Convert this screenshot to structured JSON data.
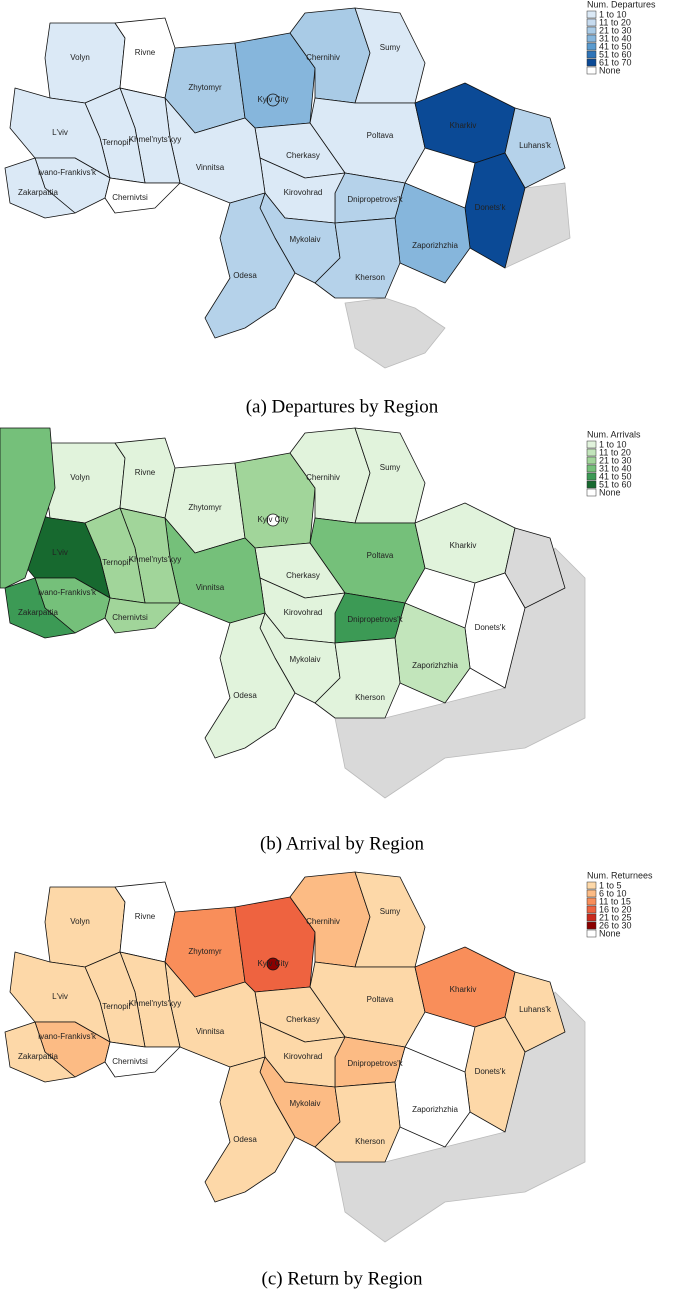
{
  "maps": [
    {
      "caption": "(a) Departures by Region",
      "legend": {
        "title": "Num. Departures",
        "items": [
          {
            "label": "1 to 10",
            "color": "#dbe9f6"
          },
          {
            "label": "11 to 20",
            "color": "#c6dbef"
          },
          {
            "label": "21 to 30",
            "color": "#a9cbe6"
          },
          {
            "label": "31 to 40",
            "color": "#86b6dc"
          },
          {
            "label": "41 to 50",
            "color": "#5a9bcf"
          },
          {
            "label": "51 to 60",
            "color": "#2f74b8"
          },
          {
            "label": "61 to 70",
            "color": "#0b4a96"
          },
          {
            "label": "None",
            "color": "#ffffff"
          }
        ]
      },
      "regions": [
        {
          "name": "Volyn",
          "color": "#dbe9f6"
        },
        {
          "name": "Rivne",
          "color": "#ffffff"
        },
        {
          "name": "Zhytomyr",
          "color": "#a9cbe6"
        },
        {
          "name": null,
          "color": "#86b6dc"
        },
        {
          "name": "Chernihiv",
          "color": "#a9cbe6"
        },
        {
          "name": "Sumy",
          "color": "#dbe9f6"
        },
        {
          "name": "Poltava",
          "color": "#dbe9f6"
        },
        {
          "name": "Kharkiv",
          "color": "#0b4a96"
        },
        {
          "name": "Luhans'k",
          "color": "#b5d2ea"
        },
        {
          "name": "Donets'k",
          "color": "#0b4a96"
        },
        {
          "name": "Zaporizhzhia",
          "color": "#86b6dc"
        },
        {
          "name": "Dnipropetrovs'k",
          "color": "#b5d2ea"
        },
        {
          "name": "Cherkasy",
          "color": "#dbe9f6"
        },
        {
          "name": "Kirovohrad",
          "color": "#dbe9f6"
        },
        {
          "name": "Vinnitsa",
          "color": "#dbe9f6"
        },
        {
          "name": "Khmel'nyts'kyy",
          "color": "#dbe9f6"
        },
        {
          "name": "Ternopil'",
          "color": "#dbe9f6"
        },
        {
          "name": "L'viv",
          "color": "#dbe9f6"
        },
        {
          "name": "Ivano-Frankivs'k",
          "color": "#dbe9f6"
        },
        {
          "name": "Zakarpattia",
          "color": "#dbe9f6"
        },
        {
          "name": "Chernivtsi",
          "color": "#ffffff"
        },
        {
          "name": "Mykolaiv",
          "color": "#b5d2ea"
        },
        {
          "name": "Odesa",
          "color": "#b5d2ea"
        },
        {
          "name": "Kherson",
          "color": "#b5d2ea"
        },
        {
          "name": "Kyiv City",
          "color": "#86b6dc"
        }
      ]
    },
    {
      "caption": "(b) Arrival by Region",
      "legend": {
        "title": "Num. Arrivals",
        "items": [
          {
            "label": "1 to 10",
            "color": "#e1f3dc"
          },
          {
            "label": "11 to 20",
            "color": "#c2e5bb"
          },
          {
            "label": "21 to 30",
            "color": "#a1d59a"
          },
          {
            "label": "31 to 40",
            "color": "#75c07a"
          },
          {
            "label": "41 to 50",
            "color": "#3c9a55"
          },
          {
            "label": "51 to 60",
            "color": "#17692f"
          },
          {
            "label": "None",
            "color": "#ffffff"
          }
        ]
      },
      "regions": [
        {
          "name": "Volyn",
          "color": "#e1f3dc"
        },
        {
          "name": "Rivne",
          "color": "#e1f3dc"
        },
        {
          "name": "Zhytomyr",
          "color": "#e1f3dc"
        },
        {
          "name": null,
          "color": "#a1d59a"
        },
        {
          "name": "Chernihiv",
          "color": "#e1f3dc"
        },
        {
          "name": "Sumy",
          "color": "#e1f3dc"
        },
        {
          "name": "Poltava",
          "color": "#75c07a"
        },
        {
          "name": "Kharkiv",
          "color": "#e1f3dc"
        },
        {
          "name": null,
          "color": "#d9d9d9"
        },
        {
          "name": "Donets'k",
          "color": "#ffffff"
        },
        {
          "name": "Zaporizhzhia",
          "color": "#c2e5bb"
        },
        {
          "name": "Dnipropetrovs'k",
          "color": "#3c9a55"
        },
        {
          "name": "Cherkasy",
          "color": "#e1f3dc"
        },
        {
          "name": "Kirovohrad",
          "color": "#e1f3dc"
        },
        {
          "name": "Vinnitsa",
          "color": "#75c07a"
        },
        {
          "name": "Khmel'nyts'kyy",
          "color": "#a1d59a"
        },
        {
          "name": "Ternopil'",
          "color": "#a1d59a"
        },
        {
          "name": "L'viv",
          "color": "#17692f"
        },
        {
          "name": "Ivano-Frankivs'k",
          "color": "#75c07a"
        },
        {
          "name": "Zakarpattia",
          "color": "#3c9a55"
        },
        {
          "name": "Chernivtsi",
          "color": "#a1d59a"
        },
        {
          "name": "Mykolaiv",
          "color": "#e1f3dc"
        },
        {
          "name": "Odesa",
          "color": "#e1f3dc"
        },
        {
          "name": "Kherson",
          "color": "#e1f3dc"
        },
        {
          "name": "Kyiv City",
          "color": "#ffffff"
        },
        {
          "name": null,
          "color": "#75c07a"
        }
      ]
    },
    {
      "caption": "(c) Return by Region",
      "legend": {
        "title": "Num. Returnees",
        "items": [
          {
            "label": "1 to 5",
            "color": "#fdd8a8"
          },
          {
            "label": "6 to 10",
            "color": "#fcbb84"
          },
          {
            "label": "11 to 15",
            "color": "#f98e5a"
          },
          {
            "label": "16 to 20",
            "color": "#ee6340"
          },
          {
            "label": "21 to 25",
            "color": "#c92a1e"
          },
          {
            "label": "26 to 30",
            "color": "#8b0000"
          },
          {
            "label": "None",
            "color": "#ffffff"
          }
        ]
      },
      "regions": [
        {
          "name": "Volyn",
          "color": "#fdd8a8"
        },
        {
          "name": "Rivne",
          "color": "#ffffff"
        },
        {
          "name": "Zhytomyr",
          "color": "#f98e5a"
        },
        {
          "name": null,
          "color": "#ee6340"
        },
        {
          "name": "Chernihiv",
          "color": "#fcbb84"
        },
        {
          "name": "Sumy",
          "color": "#fdd8a8"
        },
        {
          "name": "Poltava",
          "color": "#fdd8a8"
        },
        {
          "name": "Kharkiv",
          "color": "#f98e5a"
        },
        {
          "name": "Luhans'k",
          "color": "#fdd8a8"
        },
        {
          "name": "Donets'k",
          "color": "#fdd8a8"
        },
        {
          "name": "Zaporizhzhia",
          "color": "#ffffff"
        },
        {
          "name": "Dnipropetrovs'k",
          "color": "#fcbb84"
        },
        {
          "name": "Cherkasy",
          "color": "#fdd8a8"
        },
        {
          "name": "Kirovohrad",
          "color": "#fdd8a8"
        },
        {
          "name": "Vinnitsa",
          "color": "#fdd8a8"
        },
        {
          "name": "Khmel'nyts'kyy",
          "color": "#fdd8a8"
        },
        {
          "name": "Ternopil'",
          "color": "#fdd8a8"
        },
        {
          "name": "L'viv",
          "color": "#fdd8a8"
        },
        {
          "name": "Ivano-Frankivs'k",
          "color": "#fcbb84"
        },
        {
          "name": "Zakarpattia",
          "color": "#fdd8a8"
        },
        {
          "name": "Chernivtsi",
          "color": "#ffffff"
        },
        {
          "name": "Mykolaiv",
          "color": "#fcbb84"
        },
        {
          "name": "Odesa",
          "color": "#fdd8a8"
        },
        {
          "name": "Kherson",
          "color": "#fdd8a8"
        },
        {
          "name": "Kyiv City",
          "color": "#8b0000"
        }
      ]
    }
  ]
}
